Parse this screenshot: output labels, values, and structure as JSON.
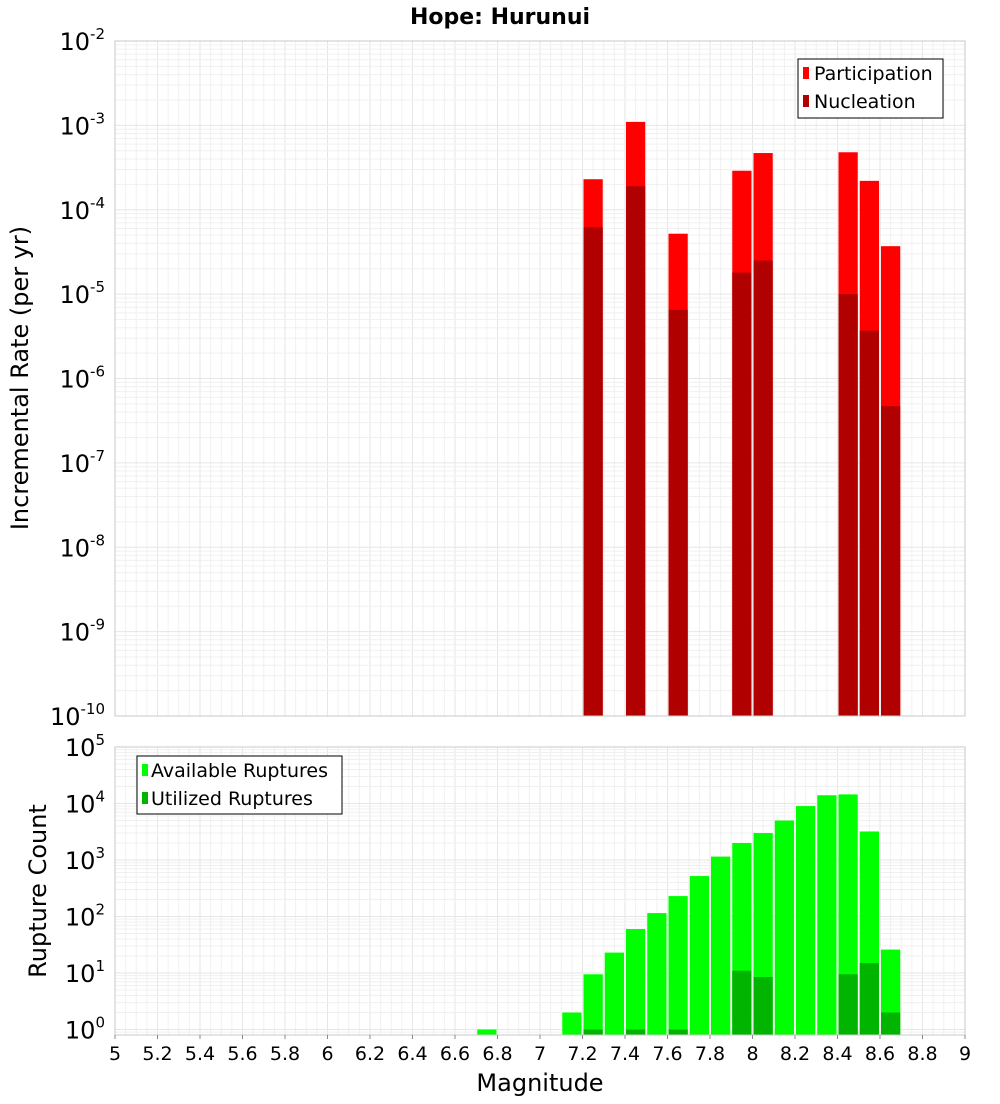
{
  "chart_data": [
    {
      "type": "bar",
      "title": "Hope: Hurunui",
      "ylabel": "Incremental Rate (per yr)",
      "xlabel": "",
      "xlim": [
        5,
        9
      ],
      "ylim": [
        1e-10,
        0.01
      ],
      "y_scale": "log",
      "y_ticks": [
        {
          "base": "10",
          "exp": "-10",
          "value": 1e-10
        },
        {
          "base": "10",
          "exp": "-9",
          "value": 1e-09
        },
        {
          "base": "10",
          "exp": "-8",
          "value": 1e-08
        },
        {
          "base": "10",
          "exp": "-7",
          "value": 1e-07
        },
        {
          "base": "10",
          "exp": "-6",
          "value": 1e-06
        },
        {
          "base": "10",
          "exp": "-5",
          "value": 1e-05
        },
        {
          "base": "10",
          "exp": "-4",
          "value": 0.0001
        },
        {
          "base": "10",
          "exp": "-3",
          "value": 0.001
        },
        {
          "base": "10",
          "exp": "-2",
          "value": 0.01
        }
      ],
      "grid": true,
      "legend_position": "top-right",
      "bar_width": 0.1,
      "series": [
        {
          "name": "Participation",
          "color": "#ff0000",
          "points": [
            {
              "x": 7.25,
              "y": 0.00023
            },
            {
              "x": 7.45,
              "y": 0.0011
            },
            {
              "x": 7.65,
              "y": 5.2e-05
            },
            {
              "x": 7.95,
              "y": 0.00029
            },
            {
              "x": 8.05,
              "y": 0.00047
            },
            {
              "x": 8.45,
              "y": 0.00048
            },
            {
              "x": 8.55,
              "y": 0.00022
            },
            {
              "x": 8.65,
              "y": 3.7e-05
            }
          ]
        },
        {
          "name": "Nucleation",
          "color": "#b00000",
          "points": [
            {
              "x": 7.25,
              "y": 6.2e-05
            },
            {
              "x": 7.45,
              "y": 0.00019
            },
            {
              "x": 7.65,
              "y": 6.5e-06
            },
            {
              "x": 7.95,
              "y": 1.8e-05
            },
            {
              "x": 8.05,
              "y": 2.5e-05
            },
            {
              "x": 8.45,
              "y": 1e-05
            },
            {
              "x": 8.55,
              "y": 3.7e-06
            },
            {
              "x": 8.65,
              "y": 4.7e-07
            }
          ]
        }
      ]
    },
    {
      "type": "bar",
      "title": "",
      "ylabel": "Rupture Count",
      "xlabel": "Magnitude",
      "xlim": [
        5,
        9
      ],
      "ylim": [
        0.8,
        100000.0
      ],
      "y_scale": "log",
      "y_ticks": [
        {
          "base": "10",
          "exp": "0",
          "value": 1
        },
        {
          "base": "10",
          "exp": "1",
          "value": 10
        },
        {
          "base": "10",
          "exp": "2",
          "value": 100
        },
        {
          "base": "10",
          "exp": "3",
          "value": 1000
        },
        {
          "base": "10",
          "exp": "4",
          "value": 10000
        },
        {
          "base": "10",
          "exp": "5",
          "value": 100000
        }
      ],
      "x_ticks": [
        "5",
        "5.2",
        "5.4",
        "5.6",
        "5.8",
        "6",
        "6.2",
        "6.4",
        "6.6",
        "6.8",
        "7",
        "7.2",
        "7.4",
        "7.6",
        "7.8",
        "8",
        "8.2",
        "8.4",
        "8.6",
        "8.8",
        "9"
      ],
      "grid": true,
      "legend_position": "top-left",
      "bar_width": 0.1,
      "series": [
        {
          "name": "Available Ruptures",
          "color": "#00ff00",
          "points": [
            {
              "x": 6.75,
              "y": 1
            },
            {
              "x": 7.15,
              "y": 2
            },
            {
              "x": 7.25,
              "y": 9.5
            },
            {
              "x": 7.35,
              "y": 23
            },
            {
              "x": 7.45,
              "y": 60
            },
            {
              "x": 7.55,
              "y": 115
            },
            {
              "x": 7.65,
              "y": 230
            },
            {
              "x": 7.75,
              "y": 520
            },
            {
              "x": 7.85,
              "y": 1150
            },
            {
              "x": 7.95,
              "y": 2000
            },
            {
              "x": 8.05,
              "y": 3000
            },
            {
              "x": 8.15,
              "y": 5000
            },
            {
              "x": 8.25,
              "y": 9000
            },
            {
              "x": 8.35,
              "y": 14000
            },
            {
              "x": 8.45,
              "y": 14500
            },
            {
              "x": 8.55,
              "y": 3200
            },
            {
              "x": 8.65,
              "y": 26
            }
          ]
        },
        {
          "name": "Utilized Ruptures",
          "color": "#00b400",
          "points": [
            {
              "x": 7.25,
              "y": 1
            },
            {
              "x": 7.45,
              "y": 1
            },
            {
              "x": 7.65,
              "y": 1
            },
            {
              "x": 7.95,
              "y": 11
            },
            {
              "x": 8.05,
              "y": 8.5
            },
            {
              "x": 8.45,
              "y": 9.5
            },
            {
              "x": 8.55,
              "y": 15
            },
            {
              "x": 8.65,
              "y": 2
            }
          ]
        }
      ]
    }
  ]
}
